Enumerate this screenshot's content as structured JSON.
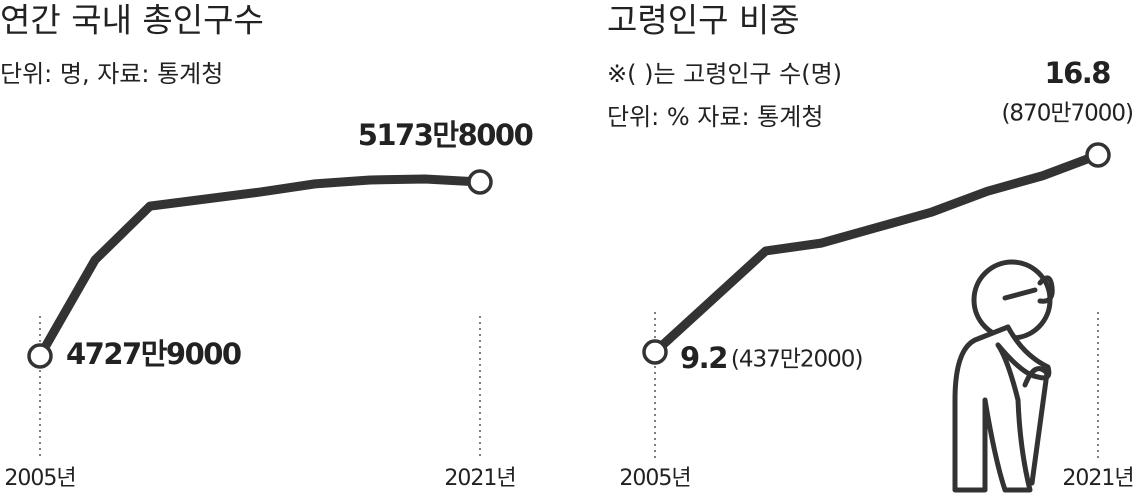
{
  "chart_data": [
    {
      "type": "line",
      "title": "연간 국내 총인구수",
      "subtitle": "단위: 명, 자료: 통계청",
      "x": [
        2005,
        2007,
        2009,
        2013,
        2015,
        2017,
        2019,
        2021
      ],
      "values": [
        47279000,
        49740000,
        51120000,
        51480000,
        51690000,
        51790000,
        51815000,
        51738000
      ],
      "value_labels": [
        "4727만9000",
        null,
        null,
        null,
        null,
        null,
        null,
        "5173만8000"
      ],
      "xlim": [
        2005,
        2021
      ],
      "xticks": [
        {
          "value": 2005,
          "label": "2005년"
        },
        {
          "value": 2021,
          "label": "2021년"
        }
      ],
      "color": "#333333"
    },
    {
      "type": "line",
      "title": "고령인구 비중",
      "subtitle": [
        "※( )는 고령인구 수(명)",
        "단위: % 자료: 통계청"
      ],
      "x": [
        2005,
        2009,
        2011,
        2013,
        2015,
        2017,
        2019,
        2021
      ],
      "values": [
        9.2,
        13.1,
        13.4,
        14.0,
        14.6,
        15.4,
        16.0,
        16.8
      ],
      "value_labels": [
        "9.2",
        null,
        null,
        null,
        null,
        null,
        null,
        "16.8"
      ],
      "annotations": [
        "(437만2000)",
        "(870만7000)"
      ],
      "xlim": [
        2005,
        2021
      ],
      "xticks": [
        {
          "value": 2005,
          "label": "2005년"
        },
        {
          "value": 2021,
          "label": "2021년"
        }
      ],
      "color": "#333333"
    }
  ]
}
